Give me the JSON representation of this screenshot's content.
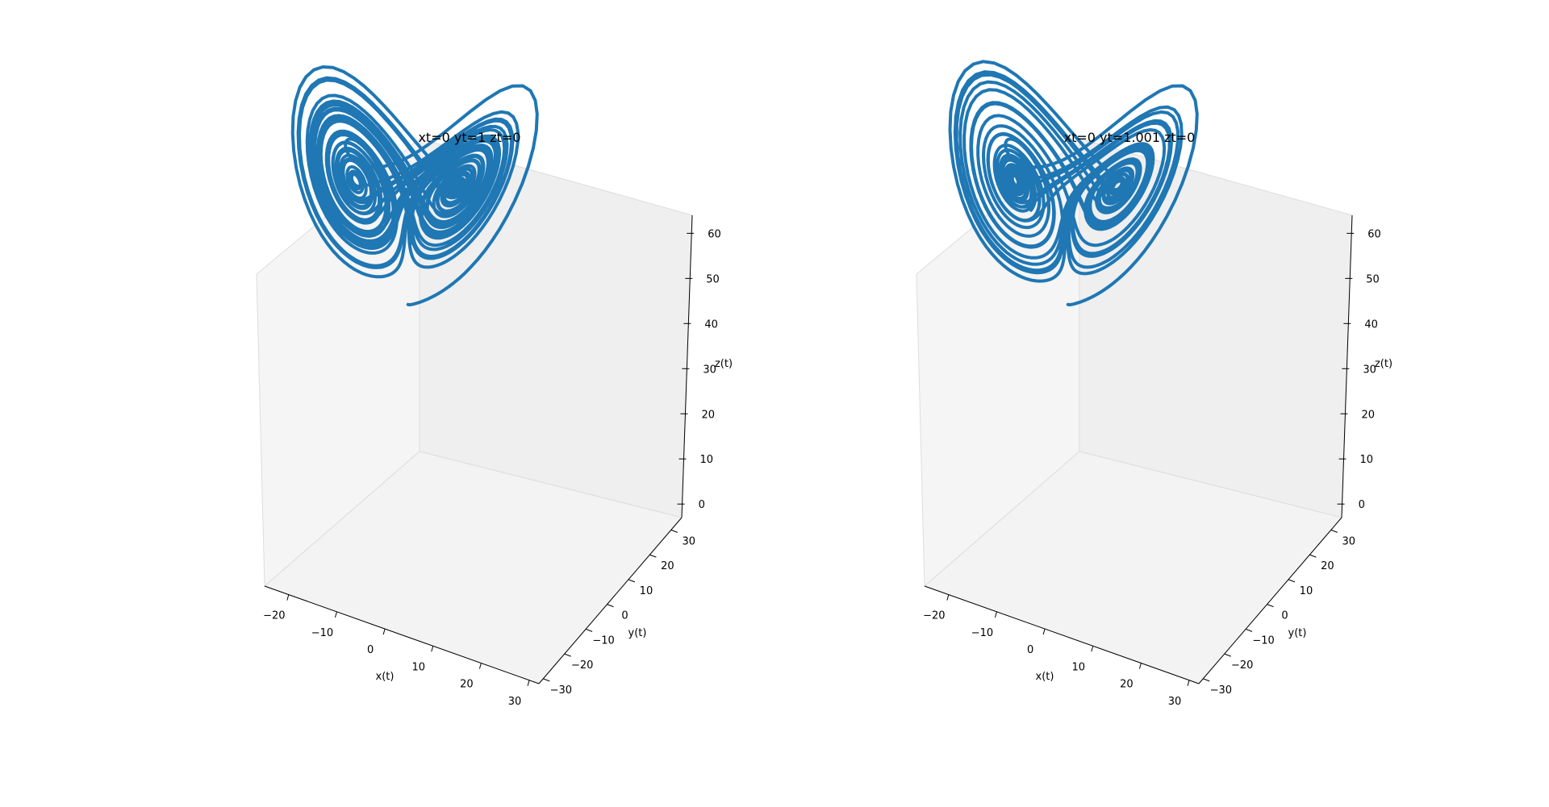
{
  "figure": {
    "background": "#ffffff",
    "pane_color": "#f2f2f2",
    "pane_edge_color": "#dddddd",
    "line_color": "#1f77b4"
  },
  "chart_data": [
    {
      "type": "line3d",
      "title": "xt=0 yt=1 zt=0",
      "xlabel": "x(t)",
      "ylabel": "y(t)",
      "zlabel": "z(t)",
      "xticks": [
        -20,
        -10,
        0,
        10,
        20,
        30
      ],
      "yticks": [
        -30,
        -20,
        -10,
        0,
        10,
        20,
        30
      ],
      "zticks": [
        0,
        10,
        20,
        30,
        40,
        50,
        60
      ],
      "xlim": [
        -25,
        32
      ],
      "ylim": [
        -32,
        35
      ],
      "zlim": [
        -3,
        64
      ],
      "grid": false,
      "series": [
        {
          "initial_state": {
            "x": 0,
            "y": 1,
            "z": 0
          },
          "color": "#1f77b4"
        }
      ]
    },
    {
      "type": "line3d",
      "title": "xt=0 yt=1.001 zt=0",
      "xlabel": "x(t)",
      "ylabel": "y(t)",
      "zlabel": "z(t)",
      "xticks": [
        -20,
        -10,
        0,
        10,
        20,
        30
      ],
      "yticks": [
        -30,
        -20,
        -10,
        0,
        10,
        20,
        30
      ],
      "zticks": [
        0,
        10,
        20,
        30,
        40,
        50,
        60
      ],
      "xlim": [
        -25,
        32
      ],
      "ylim": [
        -32,
        35
      ],
      "zlim": [
        -3,
        64
      ],
      "grid": false,
      "series": [
        {
          "initial_state": {
            "x": 0,
            "y": 1.001,
            "z": 0
          },
          "color": "#1f77b4"
        }
      ]
    }
  ]
}
